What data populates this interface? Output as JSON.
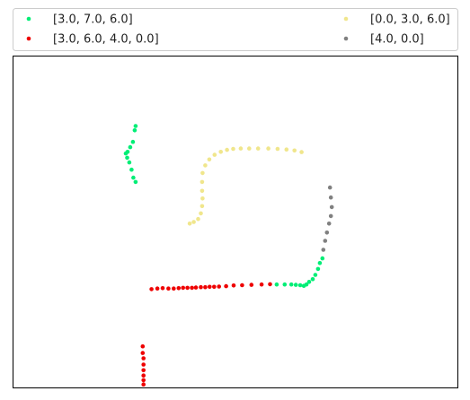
{
  "chart_data": {
    "type": "scatter",
    "title": "",
    "xlabel": "",
    "ylabel": "",
    "xlim": [
      0,
      100
    ],
    "ylim": [
      0,
      100
    ],
    "grid": false,
    "axes_ticks": false,
    "legend_placement": "top, outside plot, two columns",
    "series": [
      {
        "name": "[3.0, 7.0, 6.0]",
        "color": "#00ee76",
        "points": [
          [
            27.5,
            79.0
          ],
          [
            27.3,
            77.7
          ],
          [
            26.9,
            74.2
          ],
          [
            26.3,
            72.6
          ],
          [
            25.7,
            71.2
          ],
          [
            25.3,
            70.7
          ],
          [
            25.6,
            69.4
          ],
          [
            26.1,
            68.0
          ],
          [
            26.6,
            65.8
          ],
          [
            27.0,
            63.4
          ],
          [
            27.5,
            62.1
          ],
          [
            59.3,
            31.1
          ],
          [
            61.1,
            31.1
          ],
          [
            62.6,
            31.1
          ],
          [
            63.6,
            31.0
          ],
          [
            64.6,
            30.9
          ],
          [
            65.4,
            30.7
          ],
          [
            66.0,
            31.1
          ],
          [
            66.6,
            31.9
          ],
          [
            67.4,
            32.7
          ],
          [
            68.0,
            34.0
          ],
          [
            68.6,
            35.8
          ],
          [
            69.0,
            37.6
          ],
          [
            69.6,
            39.0
          ]
        ]
      },
      {
        "name": "[3.0, 6.0, 4.0, 0.0]",
        "color": "#ee0000",
        "points": [
          [
            31.1,
            29.7
          ],
          [
            32.4,
            29.9
          ],
          [
            33.6,
            30.0
          ],
          [
            34.9,
            29.9
          ],
          [
            36.1,
            29.9
          ],
          [
            37.2,
            30.0
          ],
          [
            38.2,
            30.1
          ],
          [
            39.2,
            30.1
          ],
          [
            40.2,
            30.1
          ],
          [
            41.1,
            30.2
          ],
          [
            42.2,
            30.3
          ],
          [
            43.2,
            30.3
          ],
          [
            44.2,
            30.4
          ],
          [
            45.2,
            30.4
          ],
          [
            46.3,
            30.5
          ],
          [
            47.9,
            30.6
          ],
          [
            49.6,
            30.8
          ],
          [
            51.5,
            30.9
          ],
          [
            53.6,
            31.0
          ],
          [
            55.9,
            31.1
          ],
          [
            57.8,
            31.2
          ],
          [
            29.1,
            12.4
          ],
          [
            29.1,
            10.4
          ],
          [
            29.3,
            8.8
          ],
          [
            29.3,
            6.9
          ],
          [
            29.3,
            5.2
          ],
          [
            29.3,
            3.6
          ],
          [
            29.3,
            2.2
          ],
          [
            29.3,
            0.9
          ]
        ]
      },
      {
        "name": "[0.0, 3.0, 6.0]",
        "color": "#f0e68c",
        "points": [
          [
            39.7,
            49.5
          ],
          [
            40.6,
            50.0
          ],
          [
            41.6,
            50.9
          ],
          [
            42.2,
            52.6
          ],
          [
            42.5,
            54.8
          ],
          [
            42.6,
            57.1
          ],
          [
            42.5,
            59.4
          ],
          [
            42.5,
            62.1
          ],
          [
            42.6,
            64.8
          ],
          [
            43.2,
            67.1
          ],
          [
            44.1,
            68.9
          ],
          [
            45.3,
            70.3
          ],
          [
            46.7,
            71.2
          ],
          [
            48.1,
            71.8
          ],
          [
            49.5,
            72.1
          ],
          [
            51.2,
            72.2
          ],
          [
            53.1,
            72.2
          ],
          [
            55.1,
            72.2
          ],
          [
            57.4,
            72.2
          ],
          [
            59.5,
            72.1
          ],
          [
            61.5,
            71.9
          ],
          [
            63.3,
            71.6
          ],
          [
            64.9,
            71.1
          ]
        ]
      },
      {
        "name": "[4.0, 0.0]",
        "color": "#808080",
        "points": [
          [
            71.3,
            60.4
          ],
          [
            71.5,
            57.4
          ],
          [
            71.7,
            54.5
          ],
          [
            71.5,
            51.8
          ],
          [
            71.1,
            49.5
          ],
          [
            70.6,
            46.8
          ],
          [
            70.2,
            44.3
          ],
          [
            69.8,
            41.6
          ]
        ]
      }
    ]
  }
}
